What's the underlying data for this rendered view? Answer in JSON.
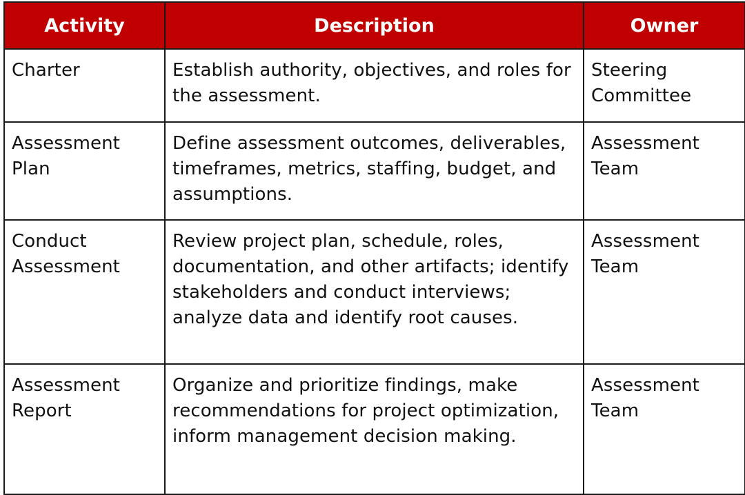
{
  "table": {
    "headers": [
      "Activity",
      "Description",
      "Owner"
    ],
    "rows": [
      {
        "activity": "Charter",
        "description": "Establish authority, objectives, and roles for the assessment.",
        "owner": "Steering Committee"
      },
      {
        "activity": "Assessment Plan",
        "description": "Define assessment outcomes, deliverables, timeframes, metrics, staffing, budget, and assumptions.",
        "owner": "Assessment Team"
      },
      {
        "activity": "Conduct Assessment",
        "description": "Review project plan, schedule, roles, documentation, and other artifacts; identify stakeholders and conduct interviews; analyze data and identify root causes.",
        "owner": "Assessment Team"
      },
      {
        "activity": "Assessment Report",
        "description": "Organize and prioritize findings, make recommendations for project optimization, inform management decision making.",
        "owner": "Assessment Team"
      }
    ]
  },
  "colors": {
    "header_background": "#c00000",
    "header_text": "#ffffff",
    "border": "#1a1a1a",
    "body_text": "#111111"
  }
}
